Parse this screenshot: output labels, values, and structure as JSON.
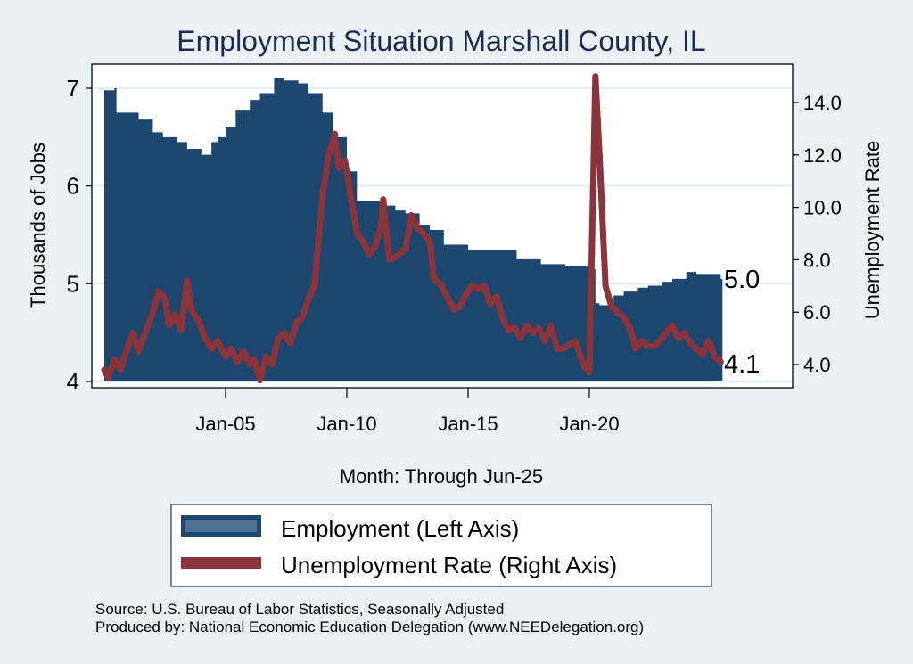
{
  "chart_data": {
    "type": "area",
    "title": "Employment Situation Marshall  County, IL",
    "xlabel": "Month: Through Jun-25",
    "ylabel_left": "Thousands of Jobs",
    "ylabel_right": "Unemployment Rate",
    "x_ticks": [
      "Jan-05",
      "Jan-10",
      "Jan-15",
      "Jan-20"
    ],
    "x_tick_years": [
      2005,
      2010,
      2015,
      2020
    ],
    "x_range": [
      "2000-01",
      "2025-06"
    ],
    "ylim_left": [
      4,
      7
    ],
    "y_ticks_left": [
      "4",
      "5",
      "6",
      "7"
    ],
    "ylim_right": [
      4,
      14
    ],
    "y_ticks_right": [
      "4.0",
      "6.0",
      "8.0",
      "10.0",
      "12.0",
      "14.0"
    ],
    "grid": true,
    "legend_position": "bottom",
    "series": [
      {
        "name": "Employment (Left Axis)",
        "axis": "left",
        "kind": "area",
        "color": "#1d476e",
        "end_label": "5.0",
        "x": [
          "2000-01",
          "2000-06",
          "2000-07",
          "2001-01",
          "2001-06",
          "2002-01",
          "2002-06",
          "2003-01",
          "2003-06",
          "2004-01",
          "2004-06",
          "2004-09",
          "2005-01",
          "2005-06",
          "2006-01",
          "2006-06",
          "2007-01",
          "2007-06",
          "2008-01",
          "2008-06",
          "2009-01",
          "2009-06",
          "2010-01",
          "2010-06",
          "2011-01",
          "2011-06",
          "2012-01",
          "2012-06",
          "2013-01",
          "2013-06",
          "2014-01",
          "2015-01",
          "2016-01",
          "2017-01",
          "2018-01",
          "2019-01",
          "2020-01",
          "2020-04",
          "2020-06",
          "2021-01",
          "2021-06",
          "2022-01",
          "2022-06",
          "2023-01",
          "2023-06",
          "2024-01",
          "2024-06",
          "2025-01",
          "2025-06"
        ],
        "values": [
          6.98,
          7.0,
          6.75,
          6.75,
          6.68,
          6.55,
          6.5,
          6.45,
          6.38,
          6.32,
          6.45,
          6.5,
          6.6,
          6.78,
          6.88,
          6.95,
          7.1,
          7.08,
          7.05,
          6.95,
          6.75,
          6.5,
          6.15,
          5.85,
          5.85,
          5.8,
          5.75,
          5.72,
          5.6,
          5.55,
          5.4,
          5.35,
          5.35,
          5.25,
          5.2,
          5.18,
          5.15,
          4.8,
          4.78,
          4.88,
          4.92,
          4.96,
          4.98,
          5.02,
          5.05,
          5.12,
          5.1,
          5.1,
          5.05
        ]
      },
      {
        "name": "Unemployment Rate (Right Axis)",
        "axis": "right",
        "kind": "line",
        "color": "#8b343c",
        "end_label": "4.1",
        "x": [
          "2000-01",
          "2000-03",
          "2000-06",
          "2000-09",
          "2001-03",
          "2001-06",
          "2002-01",
          "2002-04",
          "2002-07",
          "2002-09",
          "2002-12",
          "2003-03",
          "2003-06",
          "2003-08",
          "2003-12",
          "2004-03",
          "2004-06",
          "2004-09",
          "2005-01",
          "2005-04",
          "2005-07",
          "2005-10",
          "2006-01",
          "2006-03",
          "2006-06",
          "2006-09",
          "2006-12",
          "2007-03",
          "2007-06",
          "2007-09",
          "2007-12",
          "2008-03",
          "2008-06",
          "2008-09",
          "2009-01",
          "2009-04",
          "2009-07",
          "2009-09",
          "2009-12",
          "2010-03",
          "2010-06",
          "2010-09",
          "2010-12",
          "2011-03",
          "2011-06",
          "2011-07",
          "2011-08",
          "2011-10",
          "2012-01",
          "2012-06",
          "2012-09",
          "2012-12",
          "2013-03",
          "2013-06",
          "2013-08",
          "2013-12",
          "2014-03",
          "2014-06",
          "2014-09",
          "2014-12",
          "2015-03",
          "2015-06",
          "2015-09",
          "2015-12",
          "2016-03",
          "2016-06",
          "2016-09",
          "2016-12",
          "2017-03",
          "2017-06",
          "2017-09",
          "2017-12",
          "2018-03",
          "2018-06",
          "2018-09",
          "2018-12",
          "2019-06",
          "2019-10",
          "2020-01",
          "2020-04",
          "2020-06",
          "2020-09",
          "2020-12",
          "2021-03",
          "2021-06",
          "2021-09",
          "2021-12",
          "2022-03",
          "2022-06",
          "2022-09",
          "2022-12",
          "2023-03",
          "2023-06",
          "2023-09",
          "2023-12",
          "2024-03",
          "2024-06",
          "2024-09",
          "2024-12",
          "2025-03",
          "2025-06"
        ],
        "values": [
          3.8,
          3.5,
          4.2,
          3.8,
          5.2,
          4.5,
          6.0,
          6.8,
          6.5,
          5.5,
          5.9,
          5.3,
          7.2,
          6.1,
          5.6,
          5.0,
          4.6,
          4.9,
          4.3,
          4.6,
          4.1,
          4.5,
          4.0,
          4.2,
          3.4,
          4.3,
          4.0,
          5.0,
          5.2,
          4.8,
          5.6,
          5.8,
          6.5,
          7.0,
          10.5,
          12.0,
          12.8,
          11.5,
          11.8,
          10.4,
          9.0,
          8.7,
          8.2,
          8.5,
          9.3,
          10.3,
          9.5,
          8.0,
          8.1,
          8.4,
          9.7,
          9.2,
          9.0,
          8.7,
          7.3,
          7.0,
          6.5,
          6.1,
          6.2,
          6.7,
          7.0,
          6.9,
          7.0,
          6.3,
          6.6,
          5.8,
          5.3,
          5.4,
          5.0,
          5.5,
          5.2,
          5.4,
          4.9,
          5.5,
          4.6,
          4.6,
          4.9,
          4.0,
          3.7,
          15.0,
          12.0,
          7.0,
          6.2,
          6.0,
          5.8,
          5.4,
          4.6,
          4.9,
          4.7,
          4.7,
          4.9,
          5.2,
          5.5,
          5.0,
          5.2,
          4.8,
          4.6,
          4.4,
          4.9,
          4.3,
          4.1
        ]
      }
    ]
  },
  "legend": {
    "items": [
      {
        "label": "Employment (Left Axis)"
      },
      {
        "label": "Unemployment Rate (Right Axis)"
      }
    ]
  },
  "footer": {
    "source": "Source: U.S. Bureau of Labor Statistics, Seasonally Adjusted",
    "produced_by": "Produced by: National Economic Education Delegation (www.NEEDelegation.org)"
  }
}
